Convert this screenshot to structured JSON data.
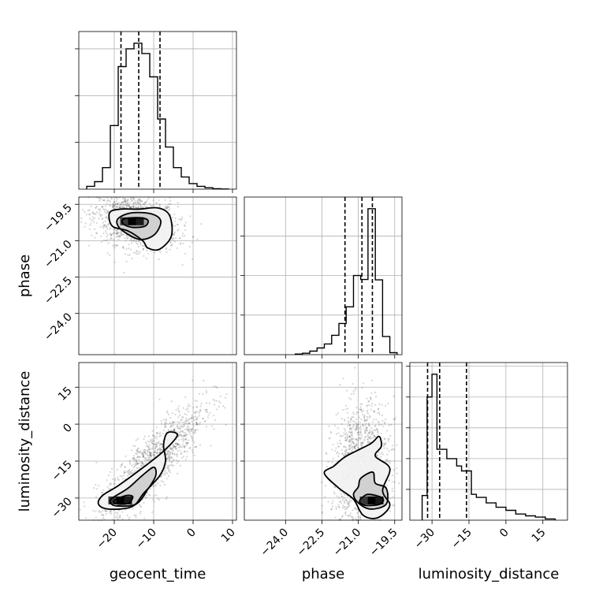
{
  "chart_data": {
    "type": "corner",
    "parameters": [
      "geocent_time",
      "phase",
      "luminosity_distance"
    ],
    "axis_labels": {
      "geocent_time": "geocent_time",
      "phase": "phase",
      "luminosity_distance": "luminosity_distance"
    },
    "ranges": {
      "geocent_time": [
        -29,
        11
      ],
      "phase": [
        -25.7,
        -19.2
      ],
      "luminosity_distance": [
        -39,
        25
      ]
    },
    "ticks": {
      "geocent_time": [
        {
          "value": -20,
          "label": "−20"
        },
        {
          "value": -10,
          "label": "−10"
        },
        {
          "value": 0,
          "label": "0"
        },
        {
          "value": 10,
          "label": "10"
        }
      ],
      "phase": [
        {
          "value": -24.0,
          "label": "−24.0"
        },
        {
          "value": -22.5,
          "label": "−22.5"
        },
        {
          "value": -21.0,
          "label": "−21.0"
        },
        {
          "value": -19.5,
          "label": "−19.5"
        }
      ],
      "luminosity_distance": [
        {
          "value": -30,
          "label": "−30"
        },
        {
          "value": -15,
          "label": "−15"
        },
        {
          "value": 0,
          "label": "0"
        },
        {
          "value": 15,
          "label": "15"
        }
      ]
    },
    "histograms": [
      {
        "parameter": "geocent_time",
        "bin_edges": [
          -27,
          -25,
          -23,
          -21,
          -19,
          -17,
          -15,
          -13,
          -11,
          -9,
          -7,
          -5,
          -3,
          -1,
          1,
          3,
          5,
          7,
          9
        ],
        "counts": [
          0.3,
          0.8,
          2.3,
          6.8,
          13.1,
          15.0,
          15.6,
          14.5,
          12.0,
          7.5,
          4.5,
          2.3,
          1.3,
          0.6,
          0.3,
          0.15,
          0.05,
          0.02
        ],
        "quantiles": [
          -18.3,
          -13.8,
          -8.4
        ]
      },
      {
        "parameter": "phase",
        "bin_edges": [
          -23.6,
          -23.3,
          -23.0,
          -22.7,
          -22.4,
          -22.1,
          -21.8,
          -21.5,
          -21.2,
          -20.9,
          -20.6,
          -20.3,
          -20.0,
          -19.7,
          -19.4
        ],
        "counts": [
          0.15,
          0.35,
          0.9,
          1.7,
          2.7,
          4.9,
          7.9,
          12.1,
          20.0,
          19.0,
          36.9,
          18.9,
          4.6,
          0.5
        ],
        "quantiles": [
          -21.55,
          -20.85,
          -20.42
        ]
      },
      {
        "parameter": "luminosity_distance",
        "bin_edges": [
          -34,
          -32,
          -30,
          -28,
          -26,
          -24,
          -22,
          -20,
          -18,
          -16,
          -14,
          -12,
          -10,
          -8,
          -6,
          -4,
          -2,
          0,
          2,
          4,
          6,
          8,
          10,
          12,
          14,
          16,
          18,
          20
        ],
        "counts": [
          4.0,
          20.0,
          23.7,
          11.5,
          11.5,
          10.0,
          10.0,
          8.8,
          8.0,
          8.0,
          4.2,
          3.7,
          3.7,
          2.8,
          2.8,
          2.1,
          2.1,
          1.6,
          1.6,
          1.0,
          1.0,
          0.7,
          0.7,
          0.5,
          0.5,
          0.2,
          0.2
        ],
        "quantiles": [
          -31.8,
          -26.9,
          -16.0
        ]
      }
    ],
    "joint": [
      {
        "x": "geocent_time",
        "y": "phase",
        "center": [
          -14.5,
          -20.2
        ],
        "spread": [
          5.0,
          0.55
        ],
        "correlation": -0.3,
        "density_peak": [
          -15.5,
          -20.2
        ],
        "contour_levels": [
          [
            [
              -21.2,
              -19.85
            ],
            [
              -18.5,
              -19.7
            ],
            [
              -13.8,
              -19.7
            ],
            [
              -9.0,
              -19.65
            ],
            [
              -6.0,
              -19.95
            ],
            [
              -5.5,
              -20.8
            ],
            [
              -8.5,
              -21.35
            ],
            [
              -11.5,
              -21.3
            ],
            [
              -12.8,
              -21.0
            ],
            [
              -16.5,
              -20.6
            ],
            [
              -20.5,
              -20.4
            ]
          ],
          [
            [
              -18.8,
              -20.05
            ],
            [
              -15.5,
              -19.85
            ],
            [
              -10.5,
              -19.9
            ],
            [
              -8.2,
              -20.2
            ],
            [
              -9.8,
              -20.75
            ],
            [
              -13.5,
              -20.95
            ],
            [
              -17.8,
              -20.6
            ],
            [
              -19.3,
              -20.3
            ]
          ],
          [
            [
              -17.5,
              -20.1
            ],
            [
              -14.0,
              -20.05
            ],
            [
              -11.5,
              -20.15
            ],
            [
              -12.2,
              -20.4
            ],
            [
              -15.5,
              -20.45
            ],
            [
              -17.8,
              -20.3
            ]
          ]
        ]
      },
      {
        "x": "geocent_time",
        "y": "luminosity_distance",
        "center": [
          -11.0,
          -17.0
        ],
        "spread": [
          6.5,
          12.0
        ],
        "correlation": 0.86,
        "density_peak": [
          -18.5,
          -31.0
        ],
        "contour_levels": [
          [
            [
              -23.0,
              -29.0
            ],
            [
              -19.0,
              -25.0
            ],
            [
              -13.0,
              -18.0
            ],
            [
              -7.5,
              -11.0
            ],
            [
              -4.0,
              -4.5
            ],
            [
              -6.5,
              -3.5
            ],
            [
              -7.5,
              -8.5
            ],
            [
              -7.0,
              -15.0
            ],
            [
              -8.5,
              -21.0
            ],
            [
              -12.5,
              -28.0
            ],
            [
              -15.5,
              -33.5
            ],
            [
              -21.5,
              -34.5
            ],
            [
              -24.0,
              -32.5
            ]
          ],
          [
            [
              -20.5,
              -30.0
            ],
            [
              -16.5,
              -26.0
            ],
            [
              -13.0,
              -21.0
            ],
            [
              -10.0,
              -17.5
            ],
            [
              -9.5,
              -21.0
            ],
            [
              -11.5,
              -26.5
            ],
            [
              -14.5,
              -32.5
            ],
            [
              -19.5,
              -33.2
            ],
            [
              -21.0,
              -31.8
            ]
          ],
          [
            [
              -20.0,
              -31.0
            ],
            [
              -17.0,
              -29.0
            ],
            [
              -15.3,
              -29.5
            ],
            [
              -16.5,
              -32.2
            ],
            [
              -19.5,
              -32.3
            ]
          ]
        ]
      },
      {
        "x": "phase",
        "y": "luminosity_distance",
        "center": [
          -20.9,
          -18.0
        ],
        "spread": [
          0.55,
          12.0
        ],
        "correlation": 0.1,
        "density_peak": [
          -20.45,
          -31.0
        ],
        "contour_levels": [
          [
            [
              -22.0,
              -17.0
            ],
            [
              -21.5,
              -13.0
            ],
            [
              -20.5,
              -8.0
            ],
            [
              -20.15,
              -5.0
            ],
            [
              -20.05,
              -9.0
            ],
            [
              -20.3,
              -13.0
            ],
            [
              -19.7,
              -18.0
            ],
            [
              -20.0,
              -27.0
            ],
            [
              -19.7,
              -33.0
            ],
            [
              -20.2,
              -38.0
            ],
            [
              -20.8,
              -37.0
            ],
            [
              -21.2,
              -30.5
            ],
            [
              -21.8,
              -26.0
            ],
            [
              -22.4,
              -20.0
            ]
          ],
          [
            [
              -21.0,
              -25.5
            ],
            [
              -20.9,
              -22.0
            ],
            [
              -20.4,
              -19.5
            ],
            [
              -20.3,
              -24.0
            ],
            [
              -19.85,
              -26.0
            ],
            [
              -19.85,
              -32.5
            ],
            [
              -20.5,
              -34.5
            ],
            [
              -21.0,
              -32.0
            ],
            [
              -21.2,
              -28.5
            ]
          ],
          [
            [
              -20.8,
              -29.5
            ],
            [
              -20.55,
              -28.5
            ],
            [
              -20.0,
              -30.0
            ],
            [
              -20.1,
              -32.5
            ],
            [
              -20.7,
              -33.0
            ],
            [
              -20.95,
              -31.5
            ]
          ]
        ]
      }
    ],
    "grid": true,
    "line_style": {
      "quantiles": "dashed",
      "quantile_levels": [
        0.16,
        0.5,
        0.84
      ]
    }
  }
}
